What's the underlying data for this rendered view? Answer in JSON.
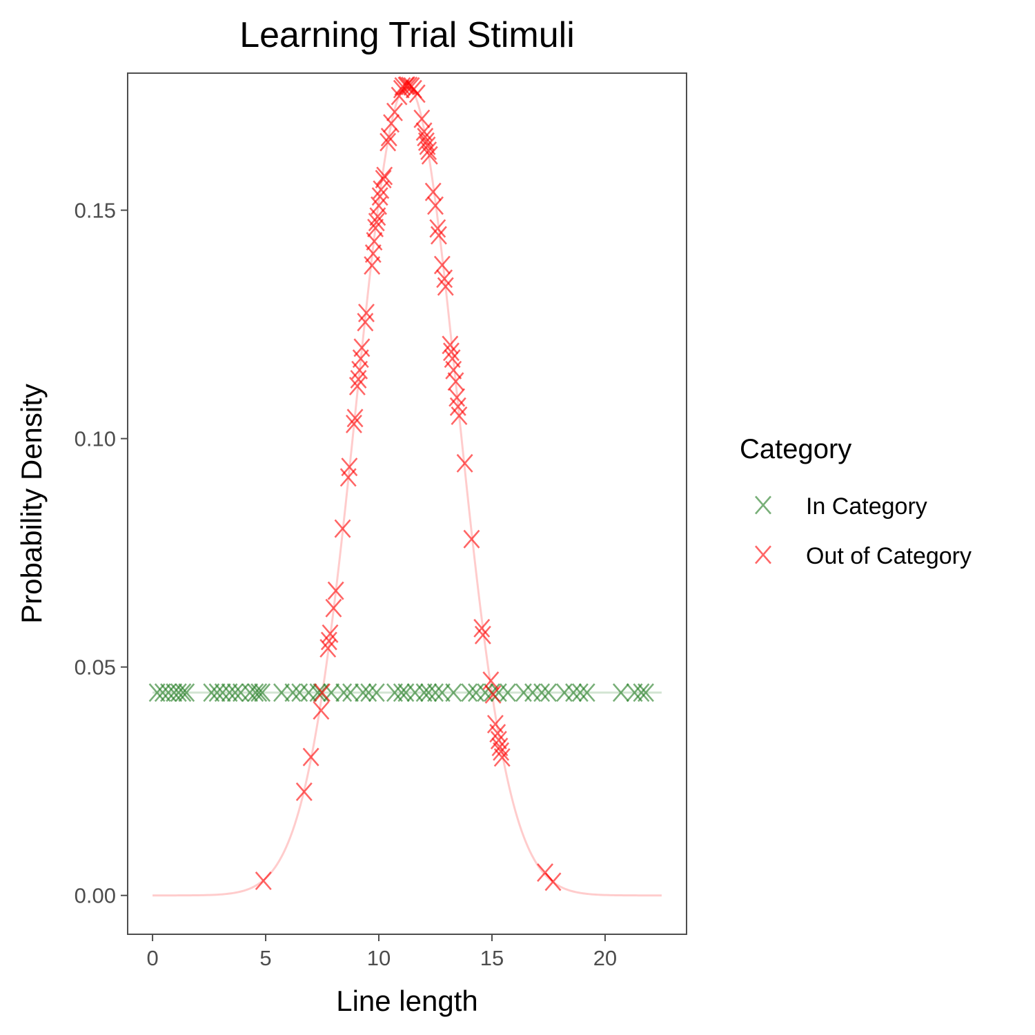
{
  "chart_data": {
    "type": "scatter",
    "title": "Learning Trial Stimuli",
    "xlabel": "Line length",
    "ylabel": "Probability Density",
    "xlim": [
      -1.1,
      23.6
    ],
    "ylim": [
      -0.0085,
      0.18
    ],
    "x_ticks": [
      0,
      5,
      10,
      15,
      20
    ],
    "x_tick_labels": [
      "0",
      "5",
      "10",
      "15",
      "20"
    ],
    "y_ticks": [
      0,
      0.05,
      0.1,
      0.15
    ],
    "y_tick_labels": [
      "0.00",
      "0.05",
      "0.10",
      "0.15"
    ],
    "grid": false,
    "legend": {
      "title": "Category",
      "position": "right",
      "entries": [
        {
          "label": "In Category",
          "color": "#1e7a1e"
        },
        {
          "label": "Out of Category",
          "color": "#ff0000"
        }
      ]
    },
    "series": [
      {
        "name": "In Category",
        "color": "#1e7a1e",
        "marker": "X",
        "density_line": {
          "type": "uniform",
          "min": 0,
          "max": 22.5,
          "y": 0.0444
        },
        "points": [
          {
            "x": 0.2,
            "y": 0.0444
          },
          {
            "x": 0.45,
            "y": 0.0444
          },
          {
            "x": 0.7,
            "y": 0.0444
          },
          {
            "x": 0.95,
            "y": 0.0444
          },
          {
            "x": 1.15,
            "y": 0.0444
          },
          {
            "x": 1.35,
            "y": 0.0444
          },
          {
            "x": 1.5,
            "y": 0.0444
          },
          {
            "x": 2.6,
            "y": 0.0444
          },
          {
            "x": 2.85,
            "y": 0.0444
          },
          {
            "x": 3.1,
            "y": 0.0444
          },
          {
            "x": 3.4,
            "y": 0.0444
          },
          {
            "x": 3.65,
            "y": 0.0444
          },
          {
            "x": 3.9,
            "y": 0.0444
          },
          {
            "x": 4.3,
            "y": 0.0444
          },
          {
            "x": 4.55,
            "y": 0.0444
          },
          {
            "x": 4.7,
            "y": 0.0444
          },
          {
            "x": 4.85,
            "y": 0.0444
          },
          {
            "x": 5.7,
            "y": 0.0444
          },
          {
            "x": 6.2,
            "y": 0.0444
          },
          {
            "x": 6.5,
            "y": 0.0444
          },
          {
            "x": 6.9,
            "y": 0.0444
          },
          {
            "x": 7.3,
            "y": 0.0444
          },
          {
            "x": 7.45,
            "y": 0.0444
          },
          {
            "x": 7.9,
            "y": 0.0444
          },
          {
            "x": 8.45,
            "y": 0.0444
          },
          {
            "x": 8.75,
            "y": 0.0444
          },
          {
            "x": 9.3,
            "y": 0.0444
          },
          {
            "x": 9.55,
            "y": 0.0444
          },
          {
            "x": 9.9,
            "y": 0.0444
          },
          {
            "x": 10.7,
            "y": 0.0444
          },
          {
            "x": 11.0,
            "y": 0.0444
          },
          {
            "x": 11.2,
            "y": 0.0444
          },
          {
            "x": 11.6,
            "y": 0.0444
          },
          {
            "x": 12.0,
            "y": 0.0444
          },
          {
            "x": 12.2,
            "y": 0.0444
          },
          {
            "x": 12.5,
            "y": 0.0444
          },
          {
            "x": 12.8,
            "y": 0.0444
          },
          {
            "x": 13.3,
            "y": 0.0444
          },
          {
            "x": 14.0,
            "y": 0.0444
          },
          {
            "x": 14.3,
            "y": 0.0444
          },
          {
            "x": 14.7,
            "y": 0.0444
          },
          {
            "x": 15.0,
            "y": 0.0444
          },
          {
            "x": 15.3,
            "y": 0.0444
          },
          {
            "x": 15.7,
            "y": 0.0444
          },
          {
            "x": 16.4,
            "y": 0.0444
          },
          {
            "x": 16.8,
            "y": 0.0444
          },
          {
            "x": 17.2,
            "y": 0.0444
          },
          {
            "x": 17.5,
            "y": 0.0444
          },
          {
            "x": 18.2,
            "y": 0.0444
          },
          {
            "x": 18.6,
            "y": 0.0444
          },
          {
            "x": 18.9,
            "y": 0.0444
          },
          {
            "x": 19.2,
            "y": 0.0444
          },
          {
            "x": 20.7,
            "y": 0.0444
          },
          {
            "x": 21.3,
            "y": 0.0444
          },
          {
            "x": 21.6,
            "y": 0.0444
          },
          {
            "x": 21.8,
            "y": 0.0444
          }
        ]
      },
      {
        "name": "Out of Category",
        "color": "#ff0000",
        "marker": "X",
        "density_line": {
          "type": "normal",
          "mean": 11.25,
          "sd": 2.25,
          "x_range": [
            0,
            22.5
          ]
        },
        "points": [
          {
            "x": 4.9,
            "y": 0.0032
          },
          {
            "x": 6.7,
            "y": 0.0227
          },
          {
            "x": 7.0,
            "y": 0.0303
          },
          {
            "x": 7.45,
            "y": 0.0405
          },
          {
            "x": 7.5,
            "y": 0.0444
          },
          {
            "x": 7.75,
            "y": 0.0541
          },
          {
            "x": 7.8,
            "y": 0.0557
          },
          {
            "x": 7.85,
            "y": 0.0573
          },
          {
            "x": 8.0,
            "y": 0.0629
          },
          {
            "x": 8.1,
            "y": 0.0667
          },
          {
            "x": 8.4,
            "y": 0.0803
          },
          {
            "x": 8.65,
            "y": 0.0915
          },
          {
            "x": 8.7,
            "y": 0.0938
          },
          {
            "x": 8.9,
            "y": 0.1032
          },
          {
            "x": 8.95,
            "y": 0.1045
          },
          {
            "x": 9.05,
            "y": 0.1115
          },
          {
            "x": 9.1,
            "y": 0.113
          },
          {
            "x": 9.15,
            "y": 0.115
          },
          {
            "x": 9.2,
            "y": 0.1175
          },
          {
            "x": 9.25,
            "y": 0.1199
          },
          {
            "x": 9.4,
            "y": 0.1255
          },
          {
            "x": 9.45,
            "y": 0.1275
          },
          {
            "x": 9.7,
            "y": 0.1379
          },
          {
            "x": 9.75,
            "y": 0.1405
          },
          {
            "x": 9.8,
            "y": 0.1432
          },
          {
            "x": 9.85,
            "y": 0.1461
          },
          {
            "x": 9.9,
            "y": 0.1474
          },
          {
            "x": 9.95,
            "y": 0.1486
          },
          {
            "x": 10.0,
            "y": 0.151
          },
          {
            "x": 10.05,
            "y": 0.153
          },
          {
            "x": 10.1,
            "y": 0.1545
          },
          {
            "x": 10.2,
            "y": 0.1568
          },
          {
            "x": 10.25,
            "y": 0.1575
          },
          {
            "x": 10.4,
            "y": 0.1649
          },
          {
            "x": 10.45,
            "y": 0.166
          },
          {
            "x": 10.55,
            "y": 0.169
          },
          {
            "x": 10.7,
            "y": 0.1715
          },
          {
            "x": 10.9,
            "y": 0.175
          },
          {
            "x": 11.0,
            "y": 0.1765
          },
          {
            "x": 11.05,
            "y": 0.1771
          },
          {
            "x": 11.2,
            "y": 0.1772
          },
          {
            "x": 11.25,
            "y": 0.1773
          },
          {
            "x": 11.35,
            "y": 0.1772
          },
          {
            "x": 11.45,
            "y": 0.1771
          },
          {
            "x": 11.55,
            "y": 0.1765
          },
          {
            "x": 11.7,
            "y": 0.1755
          },
          {
            "x": 11.9,
            "y": 0.17
          },
          {
            "x": 12.0,
            "y": 0.1672
          },
          {
            "x": 12.05,
            "y": 0.166
          },
          {
            "x": 12.1,
            "y": 0.165
          },
          {
            "x": 12.15,
            "y": 0.1641
          },
          {
            "x": 12.2,
            "y": 0.163
          },
          {
            "x": 12.25,
            "y": 0.162
          },
          {
            "x": 12.4,
            "y": 0.154
          },
          {
            "x": 12.5,
            "y": 0.151
          },
          {
            "x": 12.6,
            "y": 0.146
          },
          {
            "x": 12.65,
            "y": 0.1445
          },
          {
            "x": 12.8,
            "y": 0.138
          },
          {
            "x": 12.9,
            "y": 0.135
          },
          {
            "x": 12.95,
            "y": 0.1333
          },
          {
            "x": 13.15,
            "y": 0.1205
          },
          {
            "x": 13.2,
            "y": 0.119
          },
          {
            "x": 13.25,
            "y": 0.1175
          },
          {
            "x": 13.3,
            "y": 0.115
          },
          {
            "x": 13.4,
            "y": 0.1125
          },
          {
            "x": 13.45,
            "y": 0.109
          },
          {
            "x": 13.5,
            "y": 0.107
          },
          {
            "x": 13.55,
            "y": 0.105
          },
          {
            "x": 13.8,
            "y": 0.0946
          },
          {
            "x": 14.1,
            "y": 0.078
          },
          {
            "x": 14.55,
            "y": 0.0585
          },
          {
            "x": 14.6,
            "y": 0.057
          },
          {
            "x": 14.95,
            "y": 0.047
          },
          {
            "x": 15.05,
            "y": 0.044
          },
          {
            "x": 15.15,
            "y": 0.0375
          },
          {
            "x": 15.25,
            "y": 0.0355
          },
          {
            "x": 15.3,
            "y": 0.034
          },
          {
            "x": 15.35,
            "y": 0.0325
          },
          {
            "x": 15.4,
            "y": 0.0315
          },
          {
            "x": 15.45,
            "y": 0.0302
          },
          {
            "x": 17.35,
            "y": 0.005
          },
          {
            "x": 17.7,
            "y": 0.003
          }
        ]
      }
    ]
  }
}
